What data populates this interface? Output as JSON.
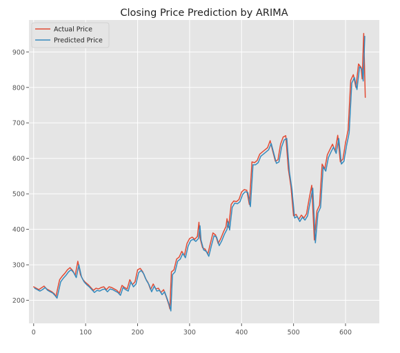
{
  "chart_data": {
    "type": "line",
    "title": "Closing Price Prediction by ARIMA",
    "xlabel": "",
    "ylabel": "",
    "xlim": [
      -9,
      665
    ],
    "ylim": [
      135,
      990
    ],
    "xticks": [
      0,
      100,
      200,
      300,
      400,
      500,
      600
    ],
    "yticks": [
      200,
      300,
      400,
      500,
      600,
      700,
      800,
      900
    ],
    "grid": true,
    "legend": "top-left",
    "colors": {
      "background": "#e5e5e5",
      "grid": "#ffffff",
      "text": "#555555",
      "title": "#222222"
    },
    "series": [
      {
        "name": "Actual Price",
        "color": "#e24a33",
        "x": [
          0,
          5,
          10,
          15,
          20,
          25,
          30,
          35,
          40,
          43,
          46,
          50,
          55,
          60,
          65,
          70,
          75,
          80,
          85,
          90,
          95,
          100,
          105,
          110,
          115,
          120,
          125,
          130,
          135,
          140,
          145,
          150,
          155,
          160,
          165,
          170,
          175,
          180,
          185,
          190,
          195,
          200,
          205,
          210,
          215,
          220,
          225,
          230,
          235,
          240,
          245,
          250,
          255,
          260,
          262,
          265,
          270,
          275,
          280,
          285,
          290,
          295,
          300,
          305,
          310,
          315,
          318,
          320,
          325,
          330,
          335,
          340,
          345,
          350,
          355,
          360,
          365,
          370,
          372,
          375,
          380,
          385,
          390,
          395,
          400,
          405,
          410,
          415,
          420,
          425,
          430,
          435,
          440,
          445,
          450,
          455,
          460,
          465,
          470,
          475,
          480,
          485,
          490,
          495,
          500,
          505,
          510,
          515,
          520,
          525,
          530,
          535,
          540,
          545,
          550,
          555,
          560,
          565,
          570,
          575,
          580,
          585,
          590,
          595,
          600,
          605,
          610,
          615,
          620,
          625,
          630,
          632,
          635,
          638
        ],
        "y": [
          238,
          234,
          230,
          235,
          240,
          232,
          228,
          224,
          218,
          210,
          232,
          258,
          268,
          276,
          286,
          292,
          284,
          270,
          310,
          272,
          258,
          250,
          244,
          236,
          228,
          234,
          232,
          236,
          238,
          230,
          238,
          236,
          232,
          228,
          220,
          242,
          236,
          232,
          258,
          244,
          252,
          286,
          290,
          280,
          262,
          250,
          230,
          246,
          232,
          234,
          222,
          230,
          210,
          188,
          176,
          280,
          286,
          316,
          322,
          338,
          326,
          360,
          374,
          378,
          372,
          380,
          420,
          376,
          348,
          344,
          330,
          360,
          390,
          384,
          360,
          374,
          392,
          408,
          430,
          405,
          470,
          480,
          478,
          484,
          505,
          512,
          510,
          470,
          590,
          588,
          594,
          612,
          618,
          624,
          630,
          650,
          620,
          592,
          596,
          640,
          660,
          664,
          570,
          520,
          438,
          442,
          428,
          440,
          432,
          444,
          486,
          524,
          370,
          452,
          468,
          584,
          570,
          610,
          625,
          640,
          620,
          665,
          590,
          598,
          644,
          680,
          820,
          836,
          800,
          866,
          856,
          824,
          952,
          772
        ]
      },
      {
        "name": "Predicted Price",
        "color": "#348abd",
        "x": [
          2,
          7,
          12,
          17,
          22,
          27,
          32,
          37,
          42,
          45,
          48,
          52,
          57,
          62,
          67,
          72,
          77,
          82,
          87,
          92,
          97,
          102,
          107,
          112,
          117,
          122,
          127,
          132,
          137,
          142,
          147,
          152,
          157,
          162,
          167,
          172,
          177,
          182,
          187,
          192,
          197,
          202,
          207,
          212,
          217,
          222,
          227,
          232,
          237,
          242,
          247,
          252,
          257,
          262,
          264,
          267,
          272,
          277,
          282,
          287,
          292,
          297,
          302,
          307,
          312,
          317,
          320,
          322,
          327,
          332,
          337,
          342,
          347,
          352,
          357,
          362,
          367,
          372,
          374,
          377,
          382,
          387,
          392,
          397,
          402,
          407,
          412,
          417,
          422,
          427,
          432,
          437,
          442,
          447,
          452,
          457,
          462,
          467,
          472,
          477,
          482,
          487,
          492,
          497,
          502,
          507,
          512,
          517,
          522,
          527,
          532,
          537,
          542,
          547,
          552,
          557,
          562,
          567,
          572,
          577,
          582,
          587,
          592,
          597,
          602,
          607,
          612,
          617,
          622,
          627,
          632,
          634,
          637
        ],
        "y": [
          234,
          230,
          226,
          230,
          236,
          228,
          224,
          220,
          212,
          206,
          226,
          252,
          262,
          270,
          280,
          286,
          278,
          264,
          300,
          266,
          252,
          244,
          238,
          230,
          222,
          228,
          226,
          230,
          232,
          224,
          232,
          230,
          226,
          222,
          214,
          236,
          230,
          226,
          252,
          238,
          246,
          278,
          284,
          274,
          256,
          244,
          224,
          240,
          226,
          228,
          216,
          224,
          204,
          182,
          170,
          272,
          280,
          310,
          316,
          332,
          320,
          352,
          368,
          372,
          366,
          374,
          410,
          370,
          342,
          338,
          324,
          354,
          382,
          378,
          354,
          368,
          386,
          400,
          422,
          398,
          462,
          474,
          472,
          478,
          498,
          506,
          504,
          464,
          582,
          582,
          588,
          606,
          612,
          618,
          624,
          642,
          614,
          586,
          590,
          632,
          652,
          656,
          562,
          512,
          432,
          436,
          422,
          434,
          426,
          438,
          478,
          516,
          362,
          446,
          462,
          576,
          564,
          602,
          618,
          632,
          614,
          656,
          584,
          592,
          636,
          672,
          812,
          828,
          794,
          858,
          850,
          818,
          944
        ]
      }
    ]
  }
}
